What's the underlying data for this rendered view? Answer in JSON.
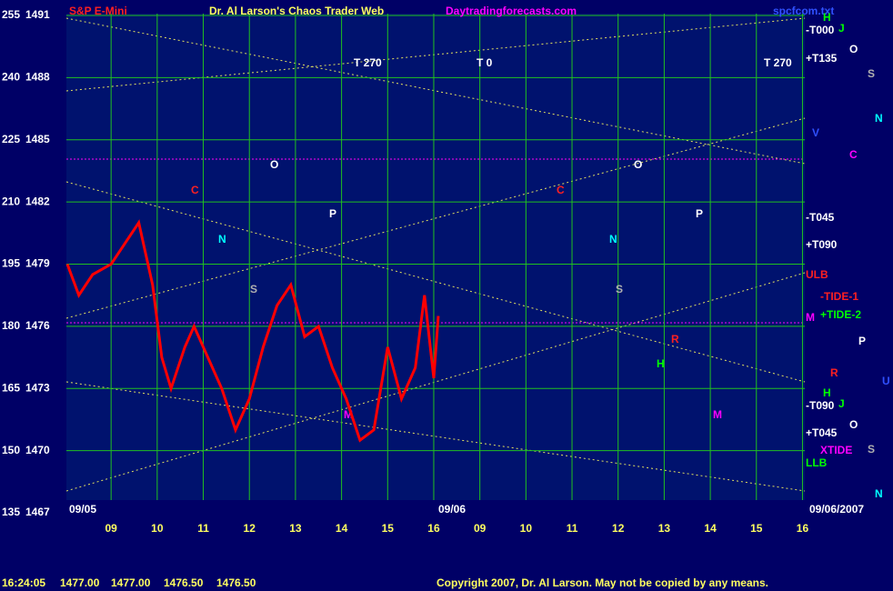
{
  "header": {
    "title": "Dr. Al Larson's Chaos Trader Web",
    "site": "Daytradingforecasts.com",
    "file": "spcfcom.txt"
  },
  "chart_data": {
    "type": "line",
    "x": [
      8.05,
      8.3,
      8.6,
      9.0,
      9.3,
      9.6,
      9.9,
      10.1,
      10.3,
      10.6,
      10.8,
      11.1,
      11.4,
      11.7,
      12.0,
      12.3,
      12.6,
      12.9,
      13.2,
      13.5,
      13.8,
      14.1,
      14.4,
      14.7,
      15.0,
      15.3,
      15.6,
      15.8,
      16.0,
      16.1
    ],
    "series": [
      {
        "name": "S&P E-Mini",
        "color": "#ff0000",
        "values": [
          1479,
          1477.5,
          1478.5,
          1479,
          1480,
          1481,
          1478,
          1474.5,
          1473,
          1475,
          1476,
          1474.5,
          1473,
          1471,
          1472.5,
          1475,
          1477,
          1478,
          1475.5,
          1476,
          1474,
          1472.5,
          1470.5,
          1471,
          1475,
          1472.5,
          1474,
          1477.5,
          1473.5,
          1476.5
        ]
      }
    ],
    "xlim": [
      8.03,
      24.05
    ],
    "xticks": [
      {
        "value": 9,
        "label": "09"
      },
      10,
      11,
      12,
      13,
      14,
      15,
      16,
      {
        "value": 17,
        "label": "09"
      },
      {
        "value": 18,
        "label": "10"
      },
      {
        "value": 19,
        "label": "11"
      },
      {
        "value": 20,
        "label": "12"
      },
      {
        "value": 21,
        "label": "13"
      },
      {
        "value": 22,
        "label": "14"
      },
      {
        "value": 23,
        "label": "15"
      },
      {
        "value": 24,
        "label": "16"
      }
    ],
    "ylim": [
      1467,
      1491
    ],
    "yticks": [
      1467,
      1470,
      1473,
      1476,
      1479,
      1482,
      1485,
      1488,
      1491
    ],
    "y2lim": [
      135,
      255
    ],
    "y2ticks": [
      135,
      150,
      165,
      180,
      195,
      210,
      225,
      240,
      255
    ],
    "grid": true
  },
  "labels": [
    "T 270",
    "T 0",
    "T 270",
    "-T000",
    "+T135",
    "-T045",
    "+T090",
    "ULB",
    "-TIDE-1",
    "+TIDE-2",
    "-T090",
    "+T045",
    "XTIDE",
    "LLB",
    "H",
    "J",
    "O",
    "S",
    "N",
    "V",
    "C",
    "P",
    "R",
    "U",
    "H",
    "J",
    "O",
    "S",
    "N",
    "M",
    "C",
    "O",
    "N",
    "P",
    "S",
    "C",
    "N",
    "O",
    "S",
    "P",
    "R",
    "H",
    "M",
    "M",
    "09/05",
    "09/06",
    "09/06/2007"
  ],
  "footer": {
    "time": "16:24:05",
    "open": "1477.00",
    "high": "1477.00",
    "low": "1476.50",
    "close": "1476.50",
    "copyright": "Copyright 2007, Dr. Al Larson. May not be copied by any means."
  }
}
